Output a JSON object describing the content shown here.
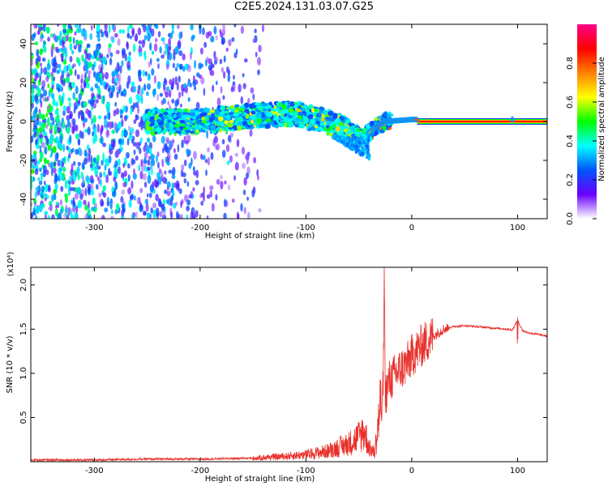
{
  "title": "C2E5.2024.131.03.07.G25",
  "chart_data": [
    {
      "type": "heatmap",
      "xlabel": "Height of straight line (km)",
      "ylabel": "Frequency (Hz)",
      "xlim": [
        -360,
        128
      ],
      "ylim": [
        -50,
        50
      ],
      "xticks": [
        -300,
        -200,
        -100,
        0,
        100
      ],
      "yticks": [
        -40,
        -20,
        0,
        20,
        40
      ],
      "colorbar": {
        "label": "Normalized spectral amplitude",
        "range": [
          0.0,
          1.0
        ],
        "ticks": [
          "0.0",
          "0.2",
          "0.4",
          "0.6",
          "0.8"
        ],
        "stops": [
          "#ffffff",
          "#6a00ff",
          "#0055ff",
          "#00ffff",
          "#00ff00",
          "#ffff00",
          "#ff8000",
          "#ff0000",
          "#ff0088"
        ]
      },
      "ridge": [
        {
          "x": -250,
          "f": 0,
          "amp": 0.35
        },
        {
          "x": -200,
          "f": 0,
          "amp": 0.5
        },
        {
          "x": -150,
          "f": 3,
          "amp": 0.5
        },
        {
          "x": -110,
          "f": 4,
          "amp": 0.55
        },
        {
          "x": -80,
          "f": 0,
          "amp": 0.6
        },
        {
          "x": -60,
          "f": -5,
          "amp": 0.5
        },
        {
          "x": -45,
          "f": -8,
          "amp": 0.4
        },
        {
          "x": -35,
          "f": -3,
          "amp": 0.8
        },
        {
          "x": -25,
          "f": 0,
          "amp": 0.9
        },
        {
          "x": 0,
          "f": 1,
          "amp": 0.8
        },
        {
          "x": 128,
          "f": 0,
          "amp": 0.85
        }
      ],
      "grid": false
    },
    {
      "type": "line",
      "xlabel": "Height of straight line (km)",
      "ylabel": "SNR (10 * v/v)",
      "y_multiplier": "(x10⁴)",
      "xlim": [
        -360,
        128
      ],
      "ylim": [
        0,
        2.2
      ],
      "xticks": [
        -300,
        -200,
        -100,
        0,
        100
      ],
      "yticks": [
        0.5,
        1.0,
        1.5,
        2.0
      ],
      "color": "#e8302a",
      "series": [
        {
          "x": [
            -360,
            -300,
            -250,
            -200,
            -150,
            -120,
            -100,
            -80,
            -60,
            -50,
            -45,
            -40,
            -35,
            -30,
            -27,
            -26,
            -25,
            -22,
            -18,
            -15,
            -10,
            -5,
            0,
            10,
            20,
            30,
            40,
            50,
            60,
            70,
            80,
            90,
            95,
            100,
            105,
            110,
            120,
            128
          ],
          "y": [
            0.02,
            0.02,
            0.03,
            0.03,
            0.04,
            0.06,
            0.08,
            0.12,
            0.2,
            0.28,
            0.35,
            0.15,
            0.1,
            0.6,
            0.8,
            2.2,
            0.75,
            0.9,
            0.95,
            1.0,
            1.05,
            1.1,
            1.2,
            1.32,
            1.42,
            1.5,
            1.53,
            1.54,
            1.53,
            1.52,
            1.51,
            1.5,
            1.49,
            1.6,
            1.48,
            1.46,
            1.44,
            1.42
          ]
        }
      ],
      "grid": false
    }
  ]
}
